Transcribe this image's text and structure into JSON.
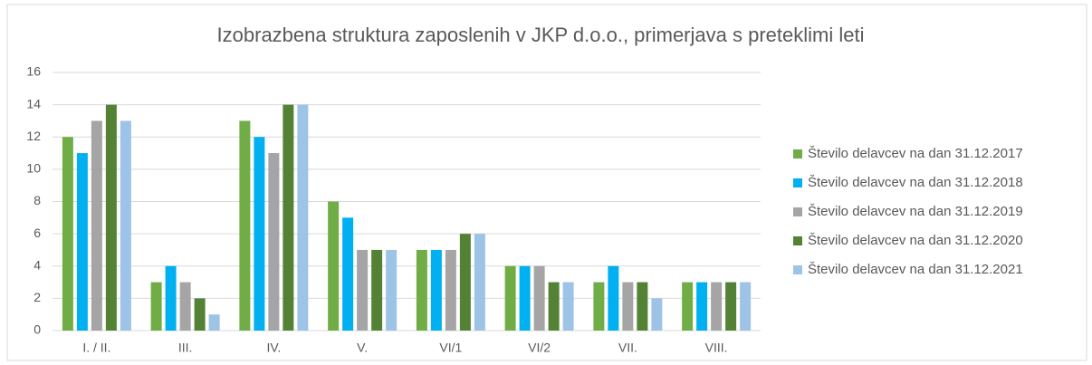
{
  "chart_data": {
    "type": "bar",
    "title": "Izobrazbena  struktura zaposlenih v JKP d.o.o., primerjava s preteklimi leti",
    "categories": [
      "I. / II.",
      "III.",
      "IV.",
      "V.",
      "VI/1",
      "VI/2",
      "VII.",
      "VIII."
    ],
    "series": [
      {
        "name": "Število delavcev na dan 31.12.2017",
        "color": "#70ad47",
        "values": [
          12,
          3,
          13,
          8,
          5,
          4,
          3,
          3
        ]
      },
      {
        "name": "Število delavcev na dan 31.12.2018",
        "color": "#00b0f0",
        "values": [
          11,
          4,
          12,
          7,
          5,
          4,
          4,
          3
        ]
      },
      {
        "name": "Število delavcev na dan 31.12.2019",
        "color": "#a5a5a5",
        "values": [
          13,
          3,
          11,
          5,
          5,
          4,
          3,
          3
        ]
      },
      {
        "name": "Število delavcev na dan 31.12.2020",
        "color": "#548235",
        "values": [
          14,
          2,
          14,
          5,
          6,
          3,
          3,
          3
        ]
      },
      {
        "name": "Število delavcev na dan 31.12.2021",
        "color": "#9dc3e6",
        "values": [
          13,
          1,
          14,
          5,
          6,
          3,
          2,
          3
        ]
      }
    ],
    "ylim": [
      0,
      16
    ],
    "yticks": [
      0,
      2,
      4,
      6,
      8,
      10,
      12,
      14,
      16
    ],
    "grid": true,
    "legend": "right"
  }
}
